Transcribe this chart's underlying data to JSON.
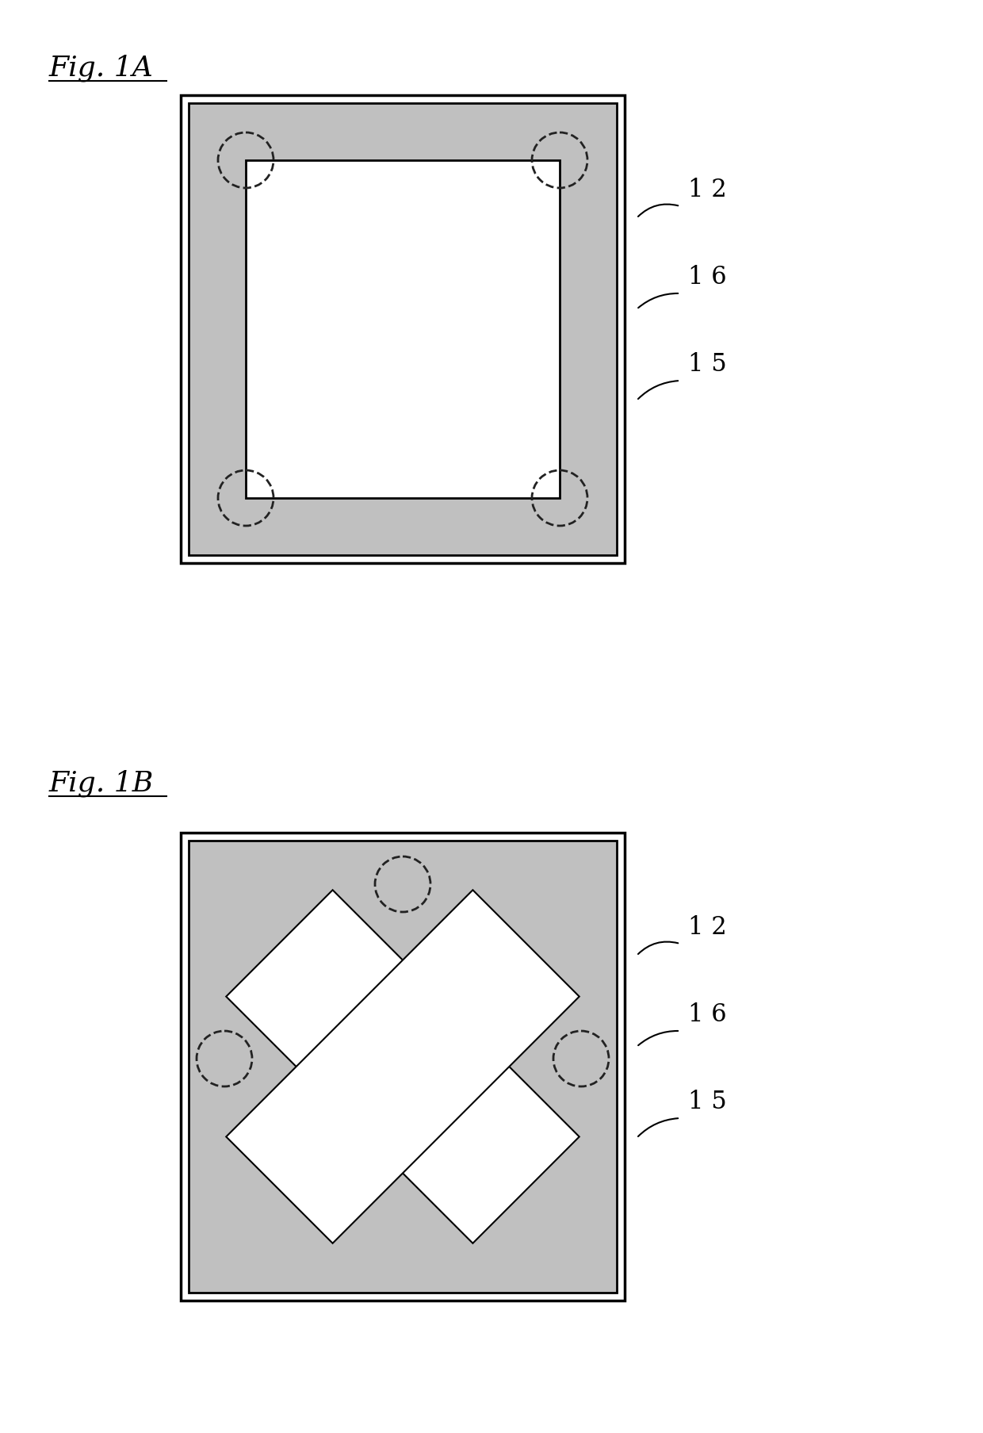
{
  "fig_title_A": "Fig. 1A",
  "fig_title_B": "Fig. 1B",
  "label_12": "1 2",
  "label_16": "1 6",
  "label_15": "1 5",
  "bg_color": "#ffffff",
  "gray_color": "#c0c0c0",
  "dark_border": "#000000",
  "dashed_circle_color": "#222222",
  "figsize": [
    12.4,
    18.07
  ]
}
